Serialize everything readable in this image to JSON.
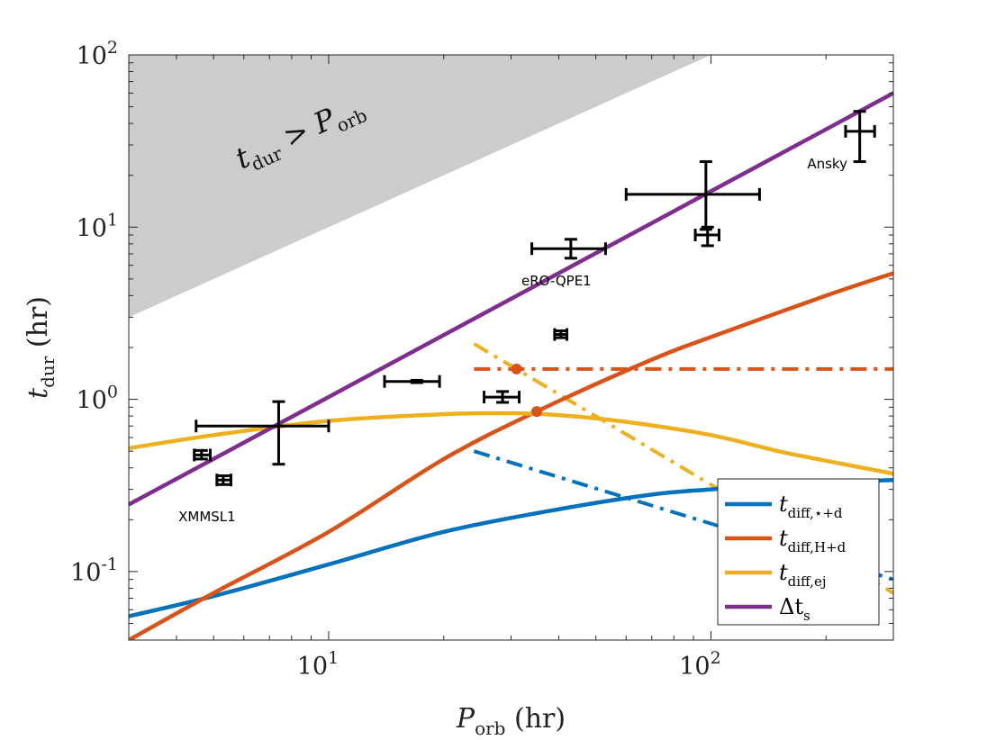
{
  "chart_data": {
    "type": "line",
    "x_scale": "log",
    "y_scale": "log",
    "xlim": [
      3,
      300
    ],
    "ylim": [
      0.04,
      100
    ],
    "xlabel": {
      "main": "P",
      "sub": "orb",
      "unit": " (hr)"
    },
    "ylabel": {
      "main": "t",
      "sub": "dur",
      "unit": " (hr)"
    },
    "x_ticks": [
      {
        "value": 10,
        "base": "10",
        "exp": "1"
      },
      {
        "value": 100,
        "base": "10",
        "exp": "2"
      }
    ],
    "y_ticks": [
      {
        "value": 0.1,
        "base": "10",
        "exp": "-1"
      },
      {
        "value": 1,
        "base": "10",
        "exp": "0"
      },
      {
        "value": 10,
        "base": "10",
        "exp": "1"
      },
      {
        "value": 100,
        "base": "10",
        "exp": "2"
      }
    ],
    "shaded_region": {
      "label_main": "t",
      "label_sub": "dur",
      "label_op": " > ",
      "label_main2": "P",
      "label_sub2": "orb",
      "color": "#cccccc",
      "description_points": [
        [
          3,
          3
        ],
        [
          100,
          100
        ]
      ]
    },
    "series": [
      {
        "name_main": "t",
        "name_sub": "diff,⋆+d",
        "color": "#0072BD",
        "style": "solid",
        "x": [
          3,
          5,
          10,
          20,
          40,
          70,
          100,
          150,
          200,
          300
        ],
        "y": [
          0.055,
          0.072,
          0.11,
          0.17,
          0.23,
          0.28,
          0.3,
          0.32,
          0.33,
          0.34
        ]
      },
      {
        "name_main": "t",
        "name_sub": "diff,H+d",
        "color": "#D95319",
        "style": "solid",
        "x": [
          3,
          5,
          10,
          20,
          35,
          70,
          100,
          200,
          300
        ],
        "y": [
          0.04,
          0.075,
          0.17,
          0.45,
          0.85,
          1.7,
          2.3,
          4.0,
          5.4
        ]
      },
      {
        "name_main": "t",
        "name_sub": "diff,ej",
        "color": "#EDB120",
        "style": "solid",
        "x": [
          3,
          5,
          10,
          20,
          30,
          40,
          60,
          100,
          150,
          200,
          300
        ],
        "y": [
          0.52,
          0.62,
          0.75,
          0.82,
          0.83,
          0.81,
          0.74,
          0.62,
          0.5,
          0.44,
          0.37
        ]
      },
      {
        "name_main": "Δt",
        "name_sub": "s",
        "color": "#7E2F8E",
        "style": "solid",
        "x": [
          3,
          300
        ],
        "y": [
          0.245,
          60
        ]
      }
    ],
    "dashed_series": [
      {
        "color": "#D95319",
        "x": [
          24,
          300
        ],
        "y": [
          1.5,
          1.5
        ]
      },
      {
        "color": "#EDB120",
        "x": [
          24,
          300
        ],
        "y": [
          2.1,
          0.075
        ]
      },
      {
        "color": "#0072BD",
        "x": [
          24,
          300
        ],
        "y": [
          0.5,
          0.09
        ]
      }
    ],
    "markers": [
      {
        "color": "#D95319",
        "x": 31,
        "y": 1.5
      },
      {
        "color": "#D95319",
        "x": 35,
        "y": 0.85
      }
    ],
    "observations": [
      {
        "x": 7.4,
        "xlo": 4.5,
        "xhi": 10,
        "y": 0.7,
        "ylo": 0.42,
        "yhi": 0.97,
        "label": ""
      },
      {
        "x": 4.65,
        "xlo": 4.45,
        "xhi": 4.9,
        "y": 0.475,
        "ylo": 0.45,
        "yhi": 0.505,
        "label": ""
      },
      {
        "x": 5.3,
        "xlo": 5.1,
        "xhi": 5.55,
        "y": 0.34,
        "ylo": 0.32,
        "yhi": 0.36,
        "label": "XMMSL1"
      },
      {
        "x": 17,
        "xlo": 14,
        "xhi": 19.5,
        "y": 1.27,
        "ylo": 1.25,
        "yhi": 1.29,
        "label": ""
      },
      {
        "x": 28.5,
        "xlo": 25.5,
        "xhi": 31.5,
        "y": 1.03,
        "ylo": 0.96,
        "yhi": 1.11,
        "label": ""
      },
      {
        "x": 40.5,
        "xlo": 39,
        "xhi": 42,
        "y": 2.38,
        "ylo": 2.28,
        "yhi": 2.5,
        "label": ""
      },
      {
        "x": 43,
        "xlo": 34,
        "xhi": 53,
        "y": 7.5,
        "ylo": 6.6,
        "yhi": 8.5,
        "label": "eRO-QPE1"
      },
      {
        "x": 97,
        "xlo": 60,
        "xhi": 134,
        "y": 15.5,
        "ylo": 9.7,
        "yhi": 24,
        "label": ""
      },
      {
        "x": 98,
        "xlo": 91,
        "xhi": 105,
        "y": 9.0,
        "ylo": 7.8,
        "yhi": 10,
        "label": ""
      },
      {
        "x": 245,
        "xlo": 225,
        "xhi": 268,
        "y": 36,
        "ylo": 24,
        "yhi": 47,
        "label": "Ansky"
      }
    ],
    "legend": {
      "position": "bottom-right"
    },
    "grid": false
  }
}
